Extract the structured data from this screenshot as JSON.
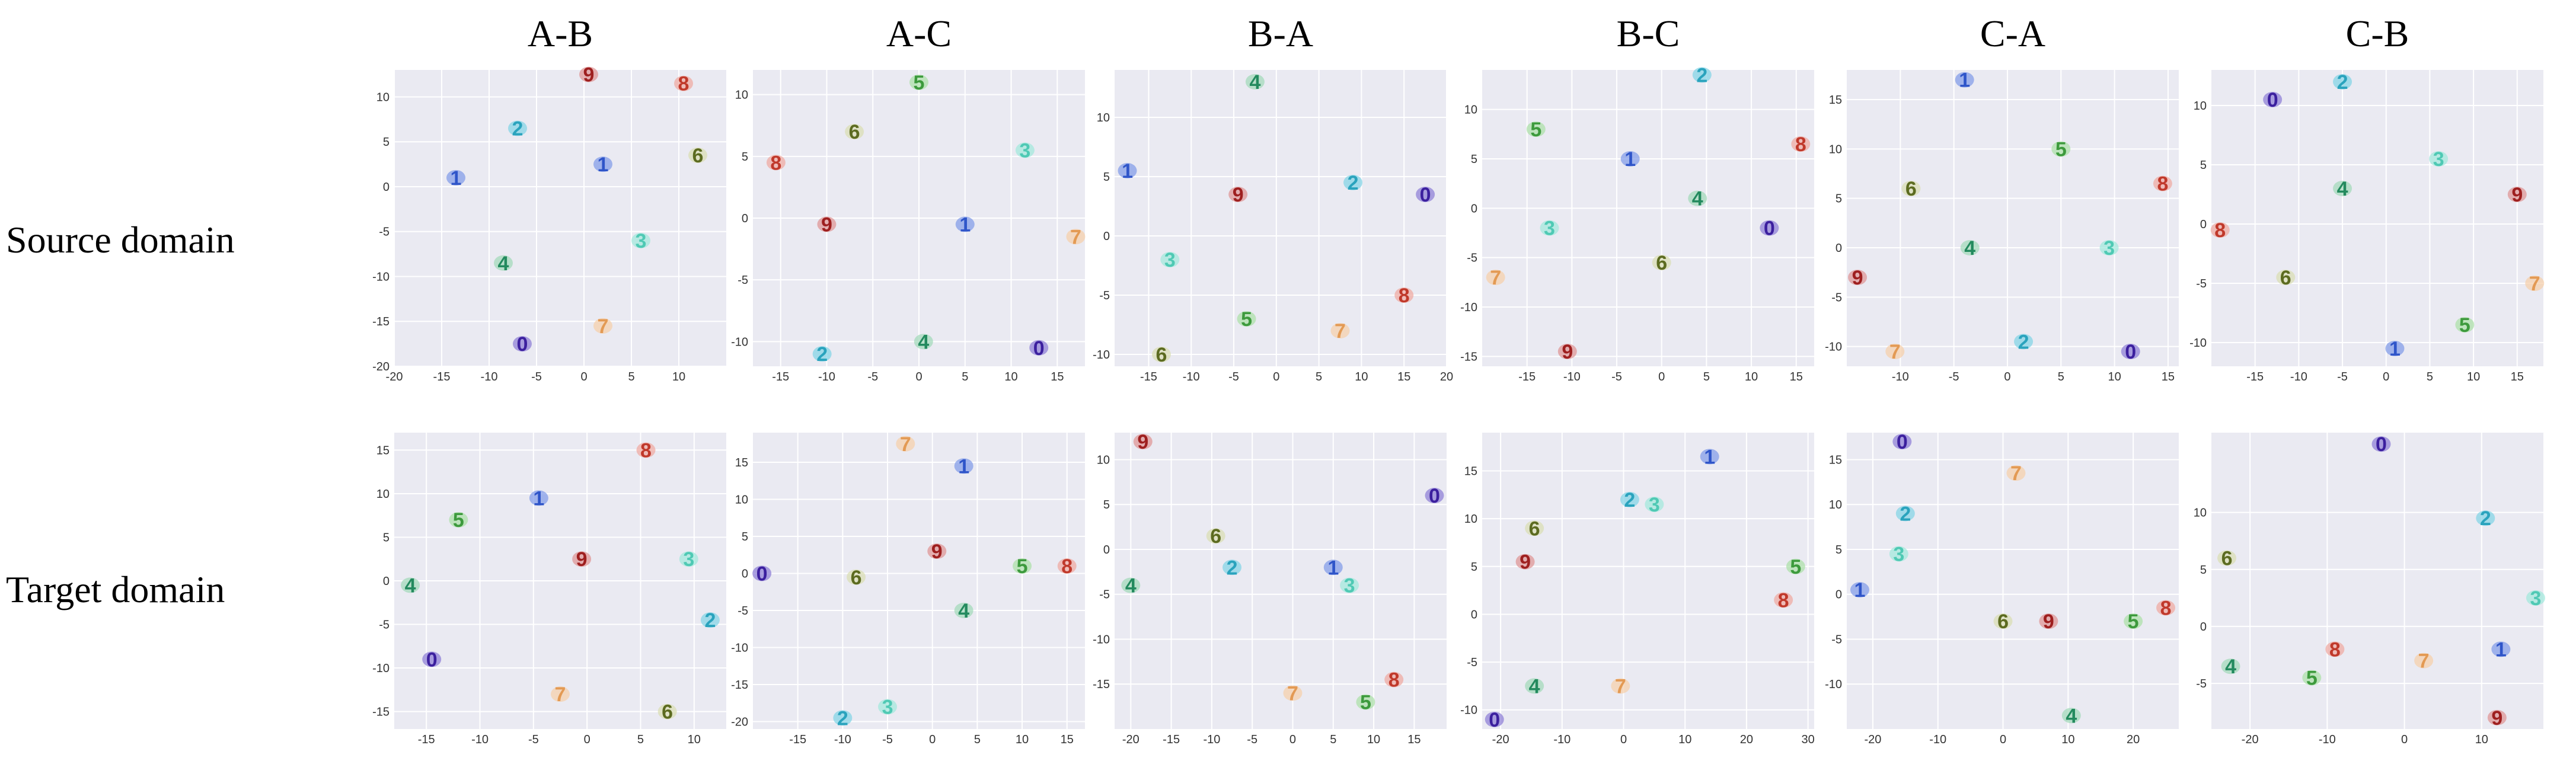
{
  "column_titles": [
    "A-B",
    "A-C",
    "B-A",
    "B-C",
    "C-A",
    "C-B"
  ],
  "row_labels": [
    "Source domain",
    "Target domain"
  ],
  "colors": {
    "panel_bg": "#eaeaf2",
    "grid": "#ffffff",
    "digits": {
      "0": "#3b1f9e",
      "1": "#2f55c9",
      "2": "#2aa3bd",
      "3": "#4fc9b4",
      "4": "#238a5e",
      "5": "#3d9a3d",
      "6": "#5c6b20",
      "7": "#e39a54",
      "8": "#c0392b",
      "9": "#9e1f1f"
    },
    "halos": {
      "0": "#8a7ad6",
      "1": "#7d98e8",
      "2": "#7fd3e6",
      "3": "#9fe8dc",
      "4": "#9fd8b8",
      "5": "#a9e0a5",
      "6": "#d9ddb0",
      "7": "#f6cfa8",
      "8": "#f0a79e",
      "9": "#de9191"
    }
  },
  "chart_data": [
    {
      "type": "scatter",
      "title": "A-B",
      "row": "Source domain",
      "xlim": [
        -20,
        15
      ],
      "ylim": [
        -20,
        13
      ],
      "xticks": [
        -20,
        -15,
        -10,
        -5,
        0,
        5,
        10
      ],
      "yticks": [
        -20,
        -15,
        -10,
        -5,
        0,
        5,
        10
      ],
      "points": [
        {
          "label": "9",
          "x": 0.5,
          "y": 12.5
        },
        {
          "label": "8",
          "x": 10.5,
          "y": 11.5
        },
        {
          "label": "6",
          "x": 12,
          "y": 3.5
        },
        {
          "label": "2",
          "x": -7,
          "y": 6.5
        },
        {
          "label": "1",
          "x": -13.5,
          "y": 1
        },
        {
          "label": "1",
          "x": 2,
          "y": 2.5
        },
        {
          "label": "3",
          "x": 6,
          "y": -6
        },
        {
          "label": "4",
          "x": -8.5,
          "y": -8.5
        },
        {
          "label": "7",
          "x": 2,
          "y": -15.5
        },
        {
          "label": "0",
          "x": -6.5,
          "y": -17.5
        }
      ]
    },
    {
      "type": "scatter",
      "title": "A-C",
      "row": "Source domain",
      "xlim": [
        -18,
        18
      ],
      "ylim": [
        -12,
        12
      ],
      "xticks": [
        -15,
        -10,
        -5,
        0,
        5,
        10,
        15
      ],
      "yticks": [
        -10,
        -5,
        0,
        5,
        10
      ],
      "points": [
        {
          "label": "5",
          "x": 0,
          "y": 11
        },
        {
          "label": "6",
          "x": -7,
          "y": 7
        },
        {
          "label": "8",
          "x": -15.5,
          "y": 4.5
        },
        {
          "label": "3",
          "x": 11.5,
          "y": 5.5
        },
        {
          "label": "9",
          "x": -10,
          "y": -0.5
        },
        {
          "label": "1",
          "x": 5,
          "y": -0.5
        },
        {
          "label": "7",
          "x": 17,
          "y": -1.5
        },
        {
          "label": "2",
          "x": -10.5,
          "y": -11
        },
        {
          "label": "4",
          "x": 0.5,
          "y": -10
        },
        {
          "label": "0",
          "x": 13,
          "y": -10.5
        }
      ]
    },
    {
      "type": "scatter",
      "title": "B-A",
      "row": "Source domain",
      "xlim": [
        -19,
        20
      ],
      "ylim": [
        -11,
        14
      ],
      "xticks": [
        -15,
        -10,
        -5,
        0,
        5,
        10,
        15,
        20
      ],
      "yticks": [
        -10,
        -5,
        0,
        5,
        10
      ],
      "points": [
        {
          "label": "4",
          "x": -2.5,
          "y": 13
        },
        {
          "label": "1",
          "x": -17.5,
          "y": 5.5
        },
        {
          "label": "9",
          "x": -4.5,
          "y": 3.5
        },
        {
          "label": "2",
          "x": 9,
          "y": 4.5
        },
        {
          "label": "0",
          "x": 17.5,
          "y": 3.5
        },
        {
          "label": "3",
          "x": -12.5,
          "y": -2
        },
        {
          "label": "8",
          "x": 15,
          "y": -5
        },
        {
          "label": "5",
          "x": -3.5,
          "y": -7
        },
        {
          "label": "7",
          "x": 7.5,
          "y": -8
        },
        {
          "label": "6",
          "x": -13.5,
          "y": -10
        }
      ]
    },
    {
      "type": "scatter",
      "title": "B-C",
      "row": "Source domain",
      "xlim": [
        -20,
        17
      ],
      "ylim": [
        -16,
        14
      ],
      "xticks": [
        -15,
        -10,
        -5,
        0,
        5,
        10,
        15
      ],
      "yticks": [
        -15,
        -10,
        -5,
        0,
        5,
        10
      ],
      "points": [
        {
          "label": "2",
          "x": 4.5,
          "y": 13.5
        },
        {
          "label": "5",
          "x": -14,
          "y": 8
        },
        {
          "label": "8",
          "x": 15.5,
          "y": 6.5
        },
        {
          "label": "1",
          "x": -3.5,
          "y": 5
        },
        {
          "label": "4",
          "x": 4,
          "y": 1
        },
        {
          "label": "3",
          "x": -12.5,
          "y": -2
        },
        {
          "label": "0",
          "x": 12,
          "y": -2
        },
        {
          "label": "7",
          "x": -18.5,
          "y": -7
        },
        {
          "label": "6",
          "x": 0,
          "y": -5.5
        },
        {
          "label": "9",
          "x": -10.5,
          "y": -14.5
        }
      ]
    },
    {
      "type": "scatter",
      "title": "C-A",
      "row": "Source domain",
      "xlim": [
        -15,
        16
      ],
      "ylim": [
        -12,
        18
      ],
      "xticks": [
        -10,
        -5,
        0,
        5,
        10,
        15
      ],
      "yticks": [
        -10,
        -5,
        0,
        5,
        10,
        15
      ],
      "points": [
        {
          "label": "1",
          "x": -4,
          "y": 17
        },
        {
          "label": "5",
          "x": 5,
          "y": 10
        },
        {
          "label": "6",
          "x": -9,
          "y": 6
        },
        {
          "label": "8",
          "x": 14.5,
          "y": 6.5
        },
        {
          "label": "4",
          "x": -3.5,
          "y": 0
        },
        {
          "label": "3",
          "x": 9.5,
          "y": 0
        },
        {
          "label": "9",
          "x": -14,
          "y": -3
        },
        {
          "label": "7",
          "x": -10.5,
          "y": -10.5
        },
        {
          "label": "2",
          "x": 1.5,
          "y": -9.5
        },
        {
          "label": "0",
          "x": 11.5,
          "y": -10.5
        }
      ]
    },
    {
      "type": "scatter",
      "title": "C-B",
      "row": "Source domain",
      "xlim": [
        -20,
        18
      ],
      "ylim": [
        -12,
        13
      ],
      "xticks": [
        -15,
        -10,
        -5,
        0,
        5,
        10,
        15
      ],
      "yticks": [
        -10,
        -5,
        0,
        5,
        10
      ],
      "points": [
        {
          "label": "2",
          "x": -5,
          "y": 12
        },
        {
          "label": "0",
          "x": -13,
          "y": 10.5
        },
        {
          "label": "3",
          "x": 6,
          "y": 5.5
        },
        {
          "label": "4",
          "x": -5,
          "y": 3
        },
        {
          "label": "9",
          "x": 15,
          "y": 2.5
        },
        {
          "label": "8",
          "x": -19,
          "y": -0.5
        },
        {
          "label": "6",
          "x": -11.5,
          "y": -4.5
        },
        {
          "label": "7",
          "x": 17,
          "y": -5
        },
        {
          "label": "5",
          "x": 9,
          "y": -8.5
        },
        {
          "label": "1",
          "x": 1,
          "y": -10.5
        }
      ]
    },
    {
      "type": "scatter",
      "title": "A-B",
      "row": "Target domain",
      "xlim": [
        -18,
        13
      ],
      "ylim": [
        -17,
        17
      ],
      "xticks": [
        -15,
        -10,
        -5,
        0,
        5,
        10
      ],
      "yticks": [
        -15,
        -10,
        -5,
        0,
        5,
        10,
        15
      ],
      "points": [
        {
          "label": "8",
          "x": 5.5,
          "y": 15
        },
        {
          "label": "1",
          "x": -4.5,
          "y": 9.5
        },
        {
          "label": "5",
          "x": -12,
          "y": 7
        },
        {
          "label": "9",
          "x": -0.5,
          "y": 2.5
        },
        {
          "label": "3",
          "x": 9.5,
          "y": 2.5
        },
        {
          "label": "4",
          "x": -16.5,
          "y": -0.5
        },
        {
          "label": "2",
          "x": 11.5,
          "y": -4.5
        },
        {
          "label": "0",
          "x": -14.5,
          "y": -9
        },
        {
          "label": "7",
          "x": -2.5,
          "y": -13
        },
        {
          "label": "6",
          "x": 7.5,
          "y": -15
        }
      ]
    },
    {
      "type": "scatter",
      "title": "A-C",
      "row": "Target domain",
      "xlim": [
        -20,
        17
      ],
      "ylim": [
        -21,
        19
      ],
      "xticks": [
        -15,
        -10,
        -5,
        0,
        5,
        10,
        15
      ],
      "yticks": [
        -20,
        -15,
        -10,
        -5,
        0,
        5,
        10,
        15
      ],
      "points": [
        {
          "label": "7",
          "x": -3,
          "y": 17.5
        },
        {
          "label": "1",
          "x": 3.5,
          "y": 14.5
        },
        {
          "label": "0",
          "x": -19,
          "y": 0
        },
        {
          "label": "6",
          "x": -8.5,
          "y": -0.5
        },
        {
          "label": "9",
          "x": 0.5,
          "y": 3
        },
        {
          "label": "5",
          "x": 10,
          "y": 1
        },
        {
          "label": "8",
          "x": 15,
          "y": 1
        },
        {
          "label": "4",
          "x": 3.5,
          "y": -5
        },
        {
          "label": "3",
          "x": -5,
          "y": -18
        },
        {
          "label": "2",
          "x": -10,
          "y": -19.5
        }
      ]
    },
    {
      "type": "scatter",
      "title": "B-A",
      "row": "Target domain",
      "xlim": [
        -22,
        19
      ],
      "ylim": [
        -20,
        13
      ],
      "xticks": [
        -20,
        -15,
        -10,
        -5,
        0,
        5,
        10,
        15
      ],
      "yticks": [
        -15,
        -10,
        -5,
        0,
        5,
        10
      ],
      "points": [
        {
          "label": "9",
          "x": -18.5,
          "y": 12
        },
        {
          "label": "0",
          "x": 17.5,
          "y": 6
        },
        {
          "label": "6",
          "x": -9.5,
          "y": 1.5
        },
        {
          "label": "2",
          "x": -7.5,
          "y": -2
        },
        {
          "label": "1",
          "x": 5,
          "y": -2
        },
        {
          "label": "4",
          "x": -20,
          "y": -4
        },
        {
          "label": "3",
          "x": 7,
          "y": -4
        },
        {
          "label": "7",
          "x": 0,
          "y": -16
        },
        {
          "label": "8",
          "x": 12.5,
          "y": -14.5
        },
        {
          "label": "5",
          "x": 9,
          "y": -17
        }
      ]
    },
    {
      "type": "scatter",
      "title": "B-C",
      "row": "Target domain",
      "xlim": [
        -23,
        31
      ],
      "ylim": [
        -12,
        19
      ],
      "xticks": [
        -20,
        -10,
        0,
        10,
        20,
        30
      ],
      "yticks": [
        -10,
        -5,
        0,
        5,
        10,
        15
      ],
      "points": [
        {
          "label": "1",
          "x": 14,
          "y": 16.5
        },
        {
          "label": "2",
          "x": 1,
          "y": 12
        },
        {
          "label": "3",
          "x": 5,
          "y": 11.5
        },
        {
          "label": "6",
          "x": -14.5,
          "y": 9
        },
        {
          "label": "9",
          "x": -16,
          "y": 5.5
        },
        {
          "label": "5",
          "x": 28,
          "y": 5
        },
        {
          "label": "8",
          "x": 26,
          "y": 1.5
        },
        {
          "label": "4",
          "x": -14.5,
          "y": -7.5
        },
        {
          "label": "7",
          "x": -0.5,
          "y": -7.5
        },
        {
          "label": "0",
          "x": -21,
          "y": -11
        }
      ]
    },
    {
      "type": "scatter",
      "title": "C-A",
      "row": "Target domain",
      "xlim": [
        -24,
        27
      ],
      "ylim": [
        -15,
        18
      ],
      "xticks": [
        -20,
        -10,
        0,
        10,
        20
      ],
      "yticks": [
        -10,
        -5,
        0,
        5,
        10,
        15
      ],
      "points": [
        {
          "label": "0",
          "x": -15.5,
          "y": 17
        },
        {
          "label": "7",
          "x": 2,
          "y": 13.5
        },
        {
          "label": "2",
          "x": -15,
          "y": 9
        },
        {
          "label": "3",
          "x": -16,
          "y": 4.5
        },
        {
          "label": "1",
          "x": -22,
          "y": 0.5
        },
        {
          "label": "6",
          "x": 0,
          "y": -3
        },
        {
          "label": "9",
          "x": 7,
          "y": -3
        },
        {
          "label": "5",
          "x": 20,
          "y": -3
        },
        {
          "label": "8",
          "x": 25,
          "y": -1.5
        },
        {
          "label": "4",
          "x": 10.5,
          "y": -13.5
        }
      ]
    },
    {
      "type": "scatter",
      "title": "C-B",
      "row": "Target domain",
      "xlim": [
        -25,
        18
      ],
      "ylim": [
        -9,
        17
      ],
      "xticks": [
        -20,
        -10,
        0,
        10
      ],
      "yticks": [
        -5,
        0,
        5,
        10
      ],
      "points": [
        {
          "label": "0",
          "x": -3,
          "y": 16
        },
        {
          "label": "2",
          "x": 10.5,
          "y": 9.5
        },
        {
          "label": "6",
          "x": -23,
          "y": 6
        },
        {
          "label": "3",
          "x": 17,
          "y": 2.5
        },
        {
          "label": "8",
          "x": -9,
          "y": -2
        },
        {
          "label": "7",
          "x": 2.5,
          "y": -3
        },
        {
          "label": "1",
          "x": 12.5,
          "y": -2
        },
        {
          "label": "4",
          "x": -22.5,
          "y": -3.5
        },
        {
          "label": "5",
          "x": -12,
          "y": -4.5
        },
        {
          "label": "9",
          "x": 12,
          "y": -8
        }
      ]
    }
  ]
}
